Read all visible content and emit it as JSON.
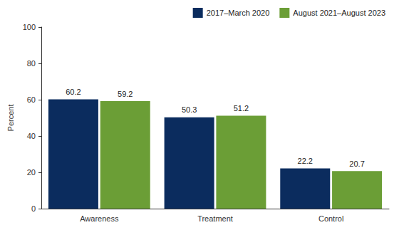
{
  "chart_data": {
    "type": "bar",
    "categories": [
      "Awareness",
      "Treatment",
      "Control"
    ],
    "series": [
      {
        "name": "2017–March 2020",
        "color": "#0b2c5e",
        "values": [
          60.2,
          50.3,
          22.2
        ]
      },
      {
        "name": "August 2021–August 2023",
        "color": "#6b9e36",
        "values": [
          59.2,
          51.2,
          20.7
        ]
      }
    ],
    "ylabel": "Percent",
    "ylim": [
      0,
      100
    ],
    "yticks": [
      0,
      20,
      40,
      60,
      80,
      100
    ],
    "grid": false,
    "legend": "top-right",
    "data_labels": true
  }
}
